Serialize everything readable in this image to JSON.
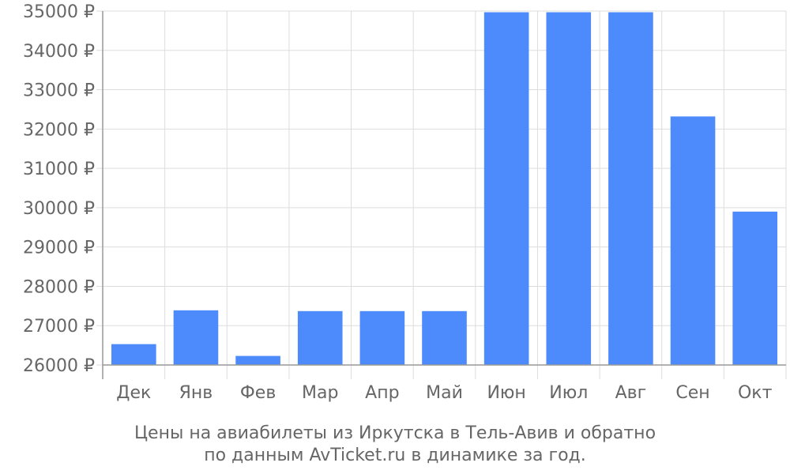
{
  "caption": {
    "line1": "Цены на авиабилеты из Иркутска в Тель-Авив и обратно",
    "line2": "по данным AvTicket.ru в динамике за год."
  },
  "chart_data": {
    "type": "bar",
    "title": "Цены на авиабилеты из Иркутска в Тель-Авив и обратно по данным AvTicket.ru в динамике за год.",
    "categories": [
      "Дек",
      "Янв",
      "Фев",
      "Мар",
      "Апр",
      "Май",
      "Июн",
      "Июл",
      "Авг",
      "Сен",
      "Окт"
    ],
    "values": [
      26530,
      27390,
      26230,
      27370,
      27370,
      27370,
      34970,
      34970,
      34970,
      32320,
      29900
    ],
    "ylim": [
      26000,
      35000
    ],
    "yticks": [
      26000,
      27000,
      28000,
      29000,
      30000,
      31000,
      32000,
      33000,
      34000,
      35000
    ],
    "ytick_suffix": " ₽",
    "xlabel": "",
    "ylabel": "",
    "grid": true,
    "bar_color": "#4d8afc",
    "grid_color": "#dddddd",
    "text_color": "#666666"
  }
}
